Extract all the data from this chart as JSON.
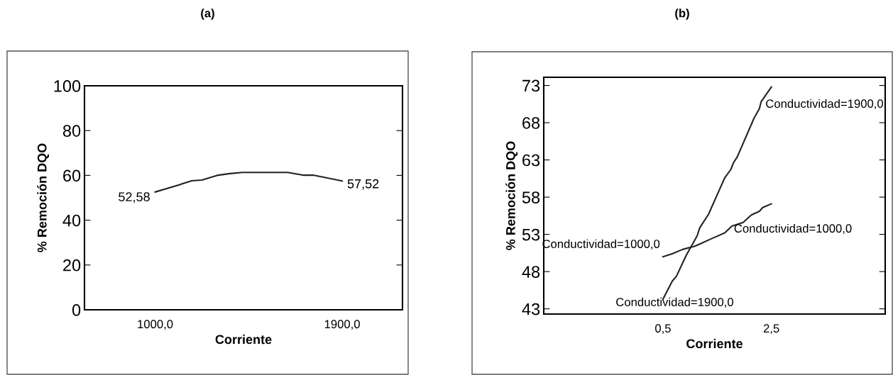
{
  "chart_data": [
    {
      "type": "line",
      "title": "(a)",
      "xlabel": "Corriente",
      "ylabel": "% Remoción DQO",
      "xlim": [
        660,
        2190
      ],
      "xticks": [
        {
          "value": 1000,
          "label": "1000,0"
        },
        {
          "value": 1900,
          "label": "1900,0"
        }
      ],
      "ylim": [
        0,
        100
      ],
      "yticks": [
        0,
        20,
        40,
        60,
        80,
        100
      ],
      "grid": false,
      "legend": false,
      "series": [
        {
          "color": "#222222",
          "x": [
            1000,
            1116,
            1176,
            1225,
            1298,
            1359,
            1420,
            1638,
            1711,
            1760,
            1900
          ],
          "values": [
            52.58,
            55.8,
            57.6,
            57.9,
            60.0,
            60.8,
            61.3,
            61.3,
            60.1,
            60.1,
            57.52
          ]
        }
      ],
      "annotations": [
        {
          "text": "52,58",
          "x": 1000,
          "y": 52.58
        },
        {
          "text": "57,52",
          "x": 1900,
          "y": 57.52
        }
      ]
    },
    {
      "type": "line",
      "title": "(b)",
      "xlabel": "Corriente",
      "ylabel": "% Remoción DQO",
      "xlim": [
        -1.7,
        4.6
      ],
      "xticks": [
        {
          "value": 0.5,
          "label": "0,5"
        },
        {
          "value": 2.5,
          "label": "2,5"
        }
      ],
      "ylim": [
        42.3,
        74.1
      ],
      "yticks": [
        43,
        48,
        53,
        58,
        63,
        68,
        73
      ],
      "grid": false,
      "legend": false,
      "series": [
        {
          "color": "#222222",
          "x": [
            0.5,
            0.67,
            0.75,
            0.93,
            1.13,
            1.18,
            1.34,
            1.64,
            1.75,
            1.8,
            1.87,
            2.18,
            2.28,
            2.31,
            2.5
          ],
          "values": [
            44.3,
            46.7,
            47.4,
            50.2,
            52.8,
            53.9,
            55.7,
            60.6,
            61.7,
            62.6,
            63.4,
            68.6,
            69.9,
            70.8,
            72.8
          ]
        },
        {
          "color": "#222222",
          "x": [
            0.5,
            0.67,
            0.87,
            1.08,
            1.18,
            1.39,
            1.64,
            1.77,
            1.98,
            2.13,
            2.28,
            2.34,
            2.5
          ],
          "values": [
            50.0,
            50.4,
            51.0,
            51.4,
            51.7,
            52.4,
            53.2,
            54.1,
            54.6,
            55.6,
            56.1,
            56.6,
            57.1
          ]
        }
      ],
      "annotations": [
        {
          "text": "Conductividad=1900,0",
          "x": 2.5,
          "y": 72.8
        },
        {
          "text": "Conductividad=1000,0",
          "x": 2.5,
          "y": 57.1
        },
        {
          "text": "Conductividad=1000,0",
          "x": 0.5,
          "y": 50.0
        },
        {
          "text": "Conductividad=1900,0",
          "x": 0.5,
          "y": 44.3
        }
      ]
    }
  ]
}
